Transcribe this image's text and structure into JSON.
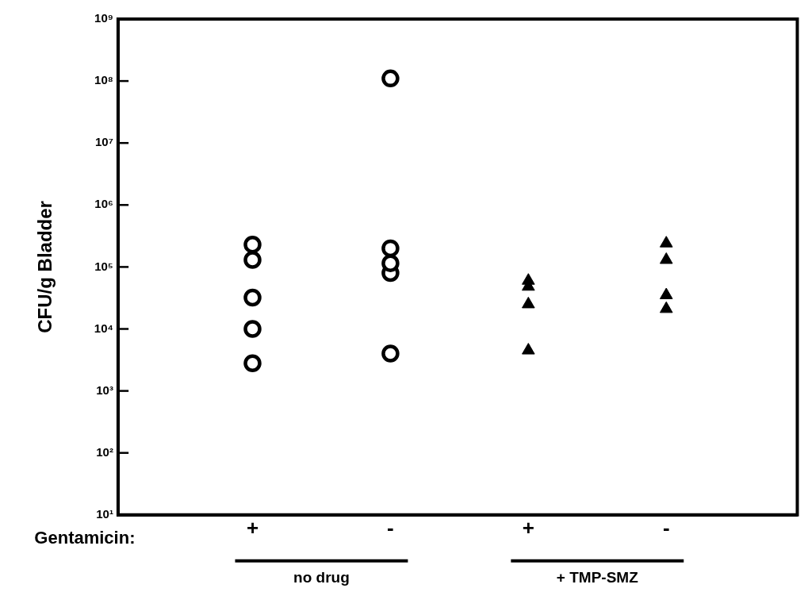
{
  "chart_data": {
    "type": "scatter",
    "ylabel": "CFU/g Bladder",
    "categories": [
      "+",
      "-",
      "+",
      "-"
    ],
    "annotations": [
      "Gentamicin:",
      "no drug",
      "+ TMP-SMZ"
    ],
    "series": [
      {
        "color": "#000000",
        "marker": "circle",
        "values": [
          230000,
          110000000,
          null,
          null
        ]
      },
      {
        "color": "#000000",
        "marker": "circle",
        "values": [
          130000,
          200000,
          null,
          null
        ]
      },
      {
        "color": "#000000",
        "marker": "circle",
        "values": [
          32000,
          115000,
          null,
          null
        ]
      },
      {
        "color": "#000000",
        "marker": "circle",
        "values": [
          10000,
          80000,
          null,
          null
        ]
      },
      {
        "color": "#000000",
        "marker": "circle",
        "values": [
          2800,
          4000,
          null,
          null
        ]
      },
      {
        "color": "#000000",
        "marker": "triangle",
        "values": [
          null,
          null,
          60000,
          240000
        ]
      },
      {
        "color": "#000000",
        "marker": "triangle",
        "values": [
          null,
          null,
          48000,
          130000
        ]
      },
      {
        "color": "#000000",
        "marker": "triangle",
        "values": [
          null,
          null,
          25000,
          35000
        ]
      },
      {
        "color": "#000000",
        "marker": "triangle",
        "values": [
          null,
          null,
          4500,
          21000
        ]
      }
    ],
    "log": "y",
    "ylim": [
      10,
      1000000000
    ],
    "yticks": [
      {
        "value": 10,
        "label": "10¹"
      },
      {
        "value": 100,
        "label": "10²"
      },
      {
        "value": 1000,
        "label": "10³"
      },
      {
        "value": 10000,
        "label": "10⁴"
      },
      {
        "value": 100000,
        "label": "10⁵"
      },
      {
        "value": 1000000,
        "label": "10⁶"
      },
      {
        "value": 10000000,
        "label": "10⁷"
      },
      {
        "value": 100000000,
        "label": "10⁸"
      },
      {
        "value": 1000000000,
        "label": "10⁹"
      }
    ],
    "grid": false,
    "legend": false
  }
}
